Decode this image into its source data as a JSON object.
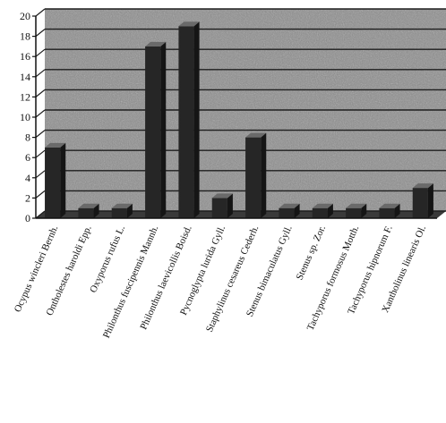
{
  "chart_data": {
    "type": "bar",
    "title": "",
    "xlabel": "",
    "ylabel": "",
    "ylim": [
      0,
      20
    ],
    "yticks": [
      0,
      2,
      4,
      6,
      8,
      10,
      12,
      14,
      16,
      18,
      20
    ],
    "grid": true,
    "legend": "none",
    "three_d": true,
    "categories": [
      "Ocypus wincleri Bernh.",
      "Ontholestes haroldi Epp.",
      "Oxyporus rufus L.",
      "Philonthus fuscipennis Mannh.",
      "Philonthus laevicollis Boisd.",
      "Pycnoglypta lurida Gyll.",
      "Staphylinus cesareus Cederh.",
      "Stenus bimaculatus Gyll.",
      "Stenus sp. Zor.",
      "Tachyporus formosus Motth.",
      "Tachyporus hipnorum F.",
      "Xantholinus linearis Ol."
    ],
    "values": [
      7,
      1,
      1,
      17,
      19,
      2,
      8,
      1,
      1,
      1,
      1,
      3
    ],
    "colors": {
      "bar_front": "#262626",
      "bar_top": "#6a6a6a",
      "bar_side": "#151515",
      "wall": "#8c8c8c",
      "floor": "#3a3a3a",
      "grid": "#1e1e1e",
      "axis": "#111111"
    }
  }
}
